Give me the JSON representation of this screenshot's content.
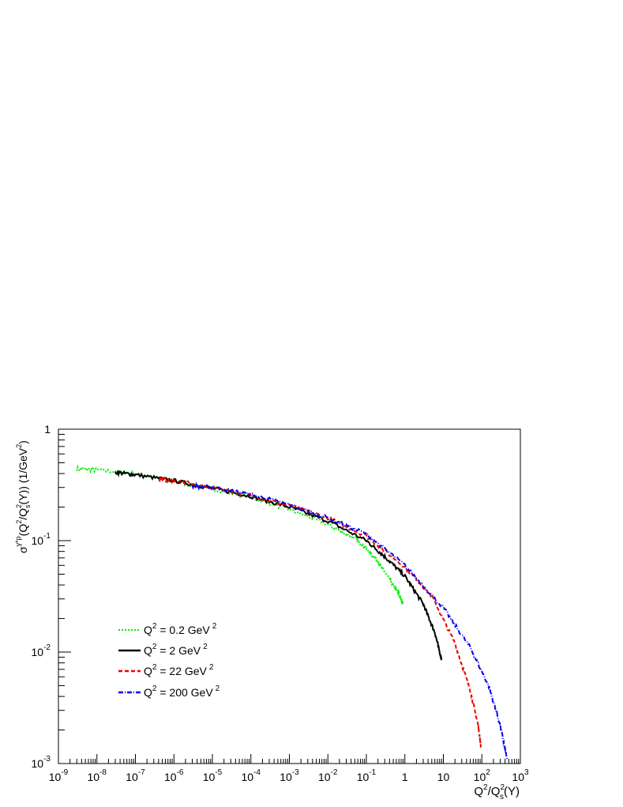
{
  "chart_data": {
    "type": "line",
    "x_scale": "log",
    "y_scale": "log",
    "xlim": [
      1e-09,
      1000
    ],
    "ylim": [
      0.001,
      1
    ],
    "grid": false,
    "legend_position": "bottom-left",
    "xlabel": {
      "base": "Q",
      "sup1": "2",
      "slash": "/Q",
      "sub": "s",
      "sup2": "2",
      "tail": "(Y)"
    },
    "ylabel": {
      "sigma": "σ",
      "sup_sigma": "γ*p",
      "open": "(Q",
      "sup1": "2",
      "slash": "/Q",
      "sub": "s",
      "sup2": "2",
      "mid": "(Y)) (1/GeV",
      "sup3": "2",
      "close": ")"
    },
    "x_tick_labels": [
      {
        "base": "10",
        "exp": "-9",
        "value": 1e-09
      },
      {
        "base": "10",
        "exp": "-8",
        "value": 1e-08
      },
      {
        "base": "10",
        "exp": "-7",
        "value": 1e-07
      },
      {
        "base": "10",
        "exp": "-6",
        "value": 1e-06
      },
      {
        "base": "10",
        "exp": "-5",
        "value": 1e-05
      },
      {
        "base": "10",
        "exp": "-4",
        "value": 0.0001
      },
      {
        "base": "10",
        "exp": "-3",
        "value": 0.001
      },
      {
        "base": "10",
        "exp": "-2",
        "value": 0.01
      },
      {
        "base": "10",
        "exp": "-1",
        "value": 0.1
      },
      {
        "base": "1",
        "exp": "",
        "value": 1
      },
      {
        "base": "10",
        "exp": "",
        "value": 10
      },
      {
        "base": "10",
        "exp": "2",
        "value": 100
      },
      {
        "base": "10",
        "exp": "3",
        "value": 1000
      }
    ],
    "y_tick_labels": [
      {
        "base": "1",
        "exp": "",
        "value": 1
      },
      {
        "base": "10",
        "exp": "-1",
        "value": 0.1
      },
      {
        "base": "10",
        "exp": "-2",
        "value": 0.01
      },
      {
        "base": "10",
        "exp": "-3",
        "value": 0.001
      }
    ],
    "series": [
      {
        "name": "Q² = 0.2 GeV ²",
        "legend": {
          "pre": "Q",
          "sup": "2",
          "text": " = 0.2 GeV",
          "sup2": "2"
        },
        "color": "#00ee00",
        "dash": "2,2",
        "x": [
          3e-09,
          1e-08,
          1e-07,
          1e-06,
          1e-05,
          0.0001,
          0.001,
          0.01,
          0.05,
          0.1,
          0.2,
          0.4,
          0.7,
          0.9
        ],
        "y": [
          0.44,
          0.43,
          0.4,
          0.34,
          0.29,
          0.245,
          0.19,
          0.14,
          0.105,
          0.085,
          0.065,
          0.045,
          0.033,
          0.027
        ]
      },
      {
        "name": "Q² = 2 GeV ²",
        "legend": {
          "pre": "Q",
          "sup": "2",
          "text": " = 2 GeV",
          "sup2": "2"
        },
        "color": "#000000",
        "dash": "",
        "x": [
          3e-08,
          1e-07,
          1e-06,
          1e-05,
          0.0001,
          0.001,
          0.01,
          0.1,
          0.3,
          1,
          3,
          6,
          9
        ],
        "y": [
          0.41,
          0.39,
          0.345,
          0.295,
          0.25,
          0.2,
          0.15,
          0.1,
          0.072,
          0.048,
          0.027,
          0.015,
          0.0085
        ]
      },
      {
        "name": "Q² = 22 GeV ²",
        "legend": {
          "pre": "Q",
          "sup": "2",
          "text": " = 22 GeV",
          "sup2": "2"
        },
        "color": "#ee0000",
        "dash": "5,3",
        "x": [
          4e-07,
          1e-06,
          1e-05,
          0.0001,
          0.001,
          0.01,
          0.1,
          1,
          5,
          20,
          50,
          80,
          95
        ],
        "y": [
          0.355,
          0.345,
          0.3,
          0.255,
          0.205,
          0.16,
          0.11,
          0.058,
          0.032,
          0.012,
          0.0045,
          0.0022,
          0.0014
        ]
      },
      {
        "name": "Q² = 200 GeV ²",
        "legend": {
          "pre": "Q",
          "sup": "2",
          "text": " = 200 GeV",
          "sup2": "2"
        },
        "color": "#0000ee",
        "dash": "6,2,1,2",
        "x": [
          3e-06,
          1e-05,
          0.0001,
          0.001,
          0.01,
          0.1,
          1,
          10,
          50,
          150,
          300,
          450
        ],
        "y": [
          0.31,
          0.3,
          0.26,
          0.21,
          0.16,
          0.115,
          0.06,
          0.025,
          0.011,
          0.005,
          0.0022,
          0.0011
        ]
      }
    ]
  }
}
